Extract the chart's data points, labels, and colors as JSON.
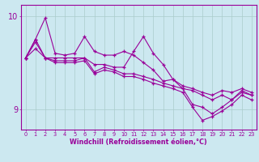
{
  "xlabel": "Windchill (Refroidissement éolien,°C)",
  "bg_color": "#cce8f0",
  "line_color": "#990099",
  "grid_color": "#aacccc",
  "xlim": [
    -0.5,
    23.5
  ],
  "ylim": [
    8.78,
    10.12
  ],
  "yticks": [
    9,
    10
  ],
  "xticks": [
    0,
    1,
    2,
    3,
    4,
    5,
    6,
    7,
    8,
    9,
    10,
    11,
    12,
    13,
    14,
    15,
    16,
    17,
    18,
    19,
    20,
    21,
    22,
    23
  ],
  "curves": [
    {
      "y": [
        9.55,
        9.75,
        9.98,
        9.6,
        9.58,
        9.6,
        9.78,
        9.62,
        9.58,
        9.58,
        9.62,
        9.58,
        9.5,
        9.42,
        9.3,
        9.32,
        9.25,
        9.22,
        9.18,
        9.15,
        9.2,
        9.18,
        9.22,
        9.18
      ]
    },
    {
      "y": [
        9.55,
        9.75,
        9.55,
        9.55,
        9.55,
        9.55,
        9.55,
        9.48,
        9.48,
        9.45,
        9.45,
        9.62,
        9.78,
        9.6,
        9.48,
        9.32,
        9.22,
        9.2,
        9.15,
        9.1,
        9.15,
        9.1,
        9.18,
        9.15
      ]
    },
    {
      "y": [
        9.55,
        9.72,
        9.55,
        9.52,
        9.52,
        9.52,
        9.55,
        9.4,
        9.45,
        9.42,
        9.38,
        9.38,
        9.35,
        9.32,
        9.28,
        9.25,
        9.22,
        9.05,
        9.02,
        8.95,
        9.02,
        9.1,
        9.2,
        9.15
      ]
    },
    {
      "y": [
        9.55,
        9.65,
        9.55,
        9.5,
        9.5,
        9.5,
        9.52,
        9.38,
        9.42,
        9.4,
        9.35,
        9.35,
        9.32,
        9.28,
        9.25,
        9.22,
        9.18,
        9.02,
        8.88,
        8.92,
        8.98,
        9.05,
        9.15,
        9.1
      ]
    }
  ]
}
